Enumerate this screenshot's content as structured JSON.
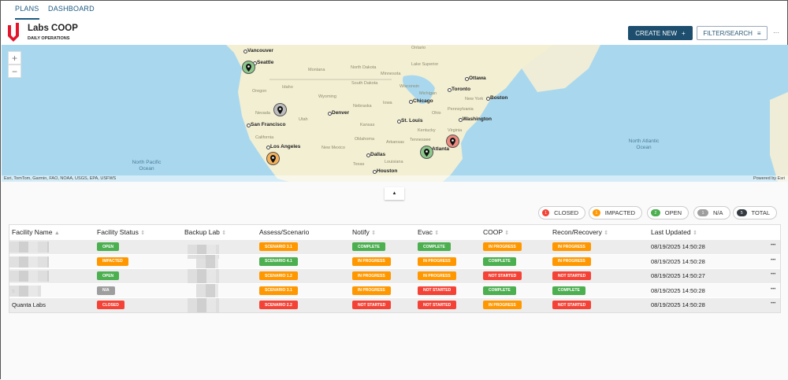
{
  "nav": {
    "tabs": [
      "PLANS",
      "DASHBOARD"
    ],
    "active": "PLANS"
  },
  "header": {
    "title": "Labs COOP",
    "subtitle": "DAILY OPERATIONS",
    "create_label": "CREATE NEW",
    "create_icon": "plus-icon",
    "filter_label": "FILTER/SEARCH",
    "filter_icon": "filter-icon",
    "more": "···"
  },
  "map": {
    "zoom_in": "+",
    "zoom_out": "−",
    "cities": [
      "Vancouver",
      "Seattle",
      "San Francisco",
      "Los Angeles",
      "Denver",
      "Chicago",
      "St. Louis",
      "Dallas",
      "Houston",
      "Atlanta",
      "Washington",
      "Boston",
      "Toronto",
      "Ottawa"
    ],
    "regions": [
      "North Dakota",
      "Montana",
      "South Dakota",
      "Minnesota",
      "Wisconsin",
      "Wyoming",
      "Nebraska",
      "Iowa",
      "Utah",
      "Kansas",
      "Oklahoma",
      "Arkansas",
      "New Mexico",
      "Texas",
      "Tennessee",
      "Kentucky",
      "Ohio",
      "Pennsylvania",
      "Virginia",
      "New York",
      "Oregon",
      "Idaho",
      "California",
      "Nevada",
      "Michigan",
      "Lake Superior",
      "Ontario",
      "Louisiana"
    ],
    "oceans": [
      "North Pacific Ocean",
      "North Atlantic Ocean"
    ],
    "attribution": "Esri, TomTom, Garmin, FAO, NOAA, USGS, EPA, USFWS",
    "powered": "Powered by Esri",
    "pins": [
      {
        "status": "open",
        "color": "#8bc98a"
      },
      {
        "status": "n/a",
        "color": "#bdbdbd"
      },
      {
        "status": "impacted",
        "color": "#f5b25a"
      },
      {
        "status": "closed",
        "color": "#ef8a7f"
      },
      {
        "status": "open",
        "color": "#8bc98a"
      }
    ],
    "collapse_icon": "▲"
  },
  "summary": [
    {
      "count": "1",
      "label": "CLOSED",
      "color": "#f44336"
    },
    {
      "count": "1",
      "label": "IMPACTED",
      "color": "#ff9800"
    },
    {
      "count": "2",
      "label": "OPEN",
      "color": "#4caf50"
    },
    {
      "count": "1",
      "label": "N/A",
      "color": "#9e9e9e"
    },
    {
      "count": "5",
      "label": "TOTAL",
      "color": "#333a40"
    }
  ],
  "table": {
    "columns": [
      "Facility Name",
      "Facility Status",
      "Backup Lab",
      "Assess/Scenario",
      "Notify",
      "Evac",
      "COOP",
      "Recon/Recovery",
      "Last Updated"
    ],
    "rows": [
      {
        "facility": "",
        "status": "OPEN",
        "assess": "SCENARIO 3.1",
        "notify": "COMPLETE",
        "evac": "COMPLETE",
        "coop": "IN PROGRESS",
        "recon": "IN PROGRESS",
        "updated": "08/19/2025 14:50:28"
      },
      {
        "facility": "",
        "status": "IMPACTED",
        "assess": "SCENARIO 4.1",
        "notify": "IN PROGRESS",
        "evac": "IN PROGRESS",
        "coop": "COMPLETE",
        "recon": "IN PROGRESS",
        "updated": "08/19/2025 14:50:28"
      },
      {
        "facility": "",
        "status": "OPEN",
        "assess": "SCENARIO 1.2",
        "notify": "IN PROGRESS",
        "evac": "IN PROGRESS",
        "coop": "NOT STARTED",
        "recon": "NOT STARTED",
        "updated": "08/19/2025 14:50:27"
      },
      {
        "facility": "s",
        "status": "N/A",
        "assess": "SCENARIO 3.1",
        "notify": "IN PROGRESS",
        "evac": "NOT STARTED",
        "coop": "COMPLETE",
        "recon": "COMPLETE",
        "updated": "08/19/2025 14:50:28"
      },
      {
        "facility": "Quanta Labs",
        "status": "CLOSED",
        "assess": "SCENARIO 2.2",
        "notify": "NOT STARTED",
        "evac": "NOT STARTED",
        "coop": "IN PROGRESS",
        "recon": "NOT STARTED",
        "updated": "08/19/2025 14:50:28"
      }
    ],
    "row_menu": "•••"
  }
}
